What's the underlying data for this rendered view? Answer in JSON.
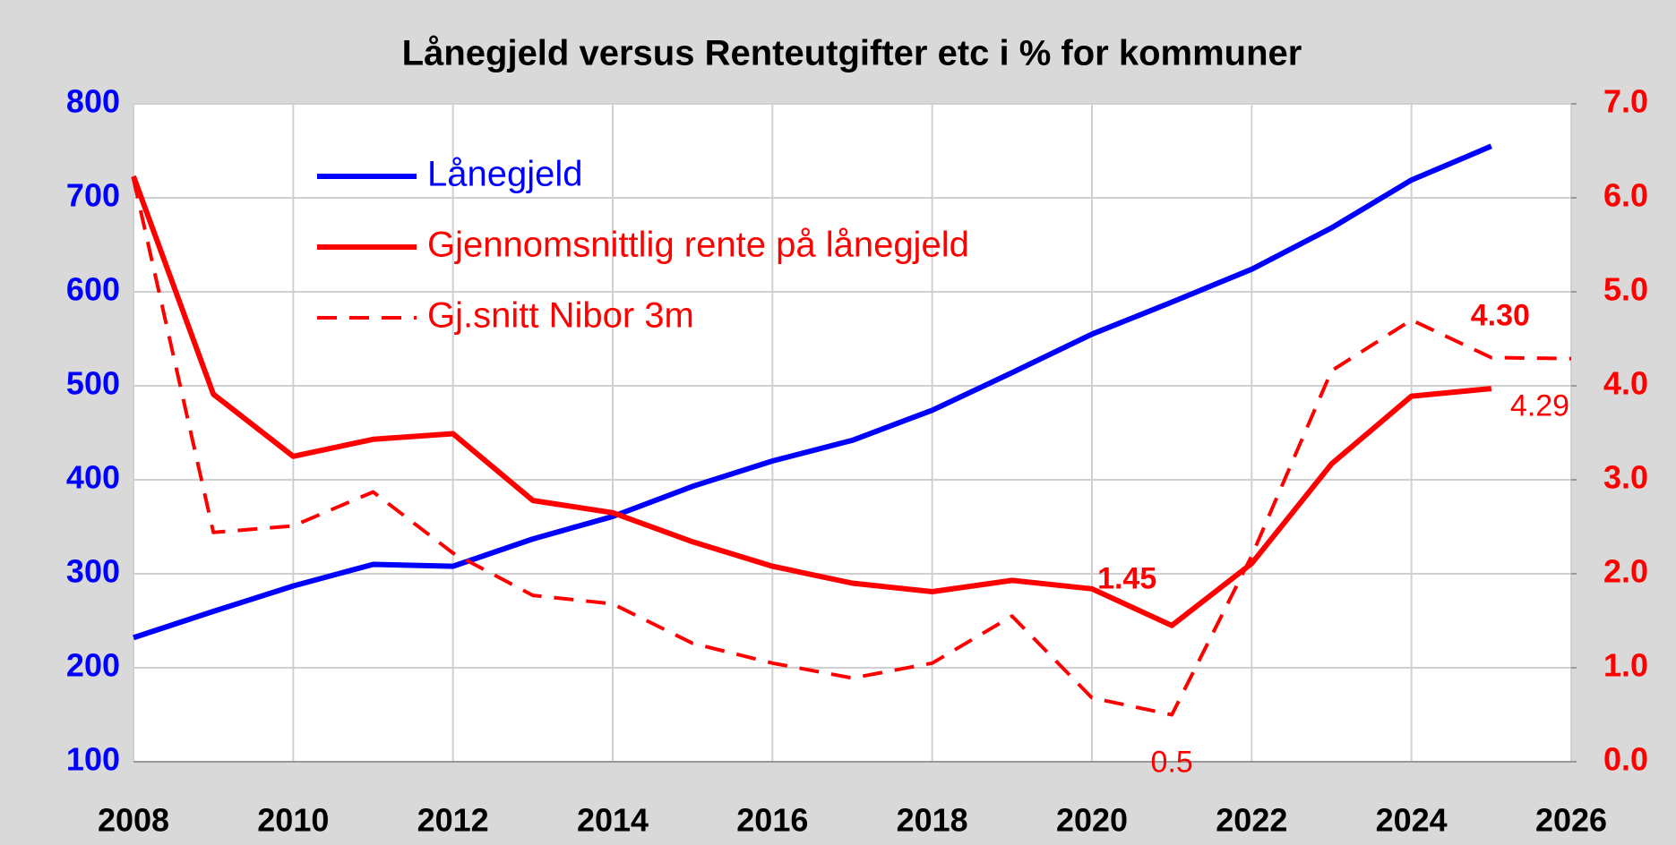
{
  "chart_data": {
    "type": "line",
    "title": "Lånegjeld versus Renteutgifter etc i %  for kommuner",
    "x": [
      2008,
      2009,
      2010,
      2011,
      2012,
      2013,
      2014,
      2015,
      2016,
      2017,
      2018,
      2019,
      2020,
      2021,
      2022,
      2023,
      2024,
      2025,
      2026
    ],
    "xlim": [
      2008,
      2026
    ],
    "xticks": [
      2008,
      2010,
      2012,
      2014,
      2016,
      2018,
      2020,
      2022,
      2024,
      2026
    ],
    "ylim": [
      100,
      800
    ],
    "yticks": [
      100,
      200,
      300,
      400,
      500,
      600,
      700,
      800
    ],
    "y2lim": [
      0,
      7
    ],
    "y2ticks": [
      {
        "value": 0,
        "label": "0.0"
      },
      {
        "value": 1,
        "label": "1.0"
      },
      {
        "value": 2,
        "label": "2.0"
      },
      {
        "value": 3,
        "label": "3.0"
      },
      {
        "value": 4,
        "label": "4.0"
      },
      {
        "value": 5,
        "label": "5.0"
      },
      {
        "value": 6,
        "label": "6.0"
      },
      {
        "value": 7,
        "label": "7.0"
      }
    ],
    "grid": true,
    "series": [
      {
        "name": "Lånegjeld",
        "color": "#0000ff",
        "dash": false,
        "values": [
          232,
          260,
          287,
          310,
          308,
          337,
          361,
          393,
          420,
          442,
          474,
          514,
          555,
          589,
          624,
          668,
          719,
          755,
          null
        ]
      },
      {
        "name": "Gjennomsnittlig rente på lånegjeld",
        "color": "#ff0000",
        "dash": false,
        "axis": "y2",
        "values": [
          6.23,
          3.91,
          3.25,
          3.43,
          3.49,
          2.78,
          2.65,
          2.34,
          2.08,
          1.9,
          1.81,
          1.93,
          1.84,
          1.45,
          2.11,
          3.17,
          3.89,
          3.97,
          null
        ],
        "value_labels": [
          null,
          null,
          null,
          null,
          null,
          null,
          null,
          null,
          null,
          null,
          null,
          null,
          null,
          "1.45",
          null,
          null,
          null,
          null,
          null
        ]
      },
      {
        "name": "Gj.snitt Nibor 3m",
        "color": "#ff0000",
        "dash": true,
        "axis": "y2",
        "values": [
          6.2,
          2.44,
          2.51,
          2.87,
          2.22,
          1.77,
          1.68,
          1.26,
          1.05,
          0.89,
          1.05,
          1.55,
          0.68,
          0.5,
          2.19,
          4.16,
          4.7,
          4.3,
          4.29
        ],
        "value_labels": [
          null,
          null,
          null,
          null,
          null,
          null,
          null,
          null,
          null,
          null,
          null,
          null,
          null,
          "0.5",
          null,
          null,
          null,
          "4.30",
          "4.29"
        ]
      }
    ]
  }
}
